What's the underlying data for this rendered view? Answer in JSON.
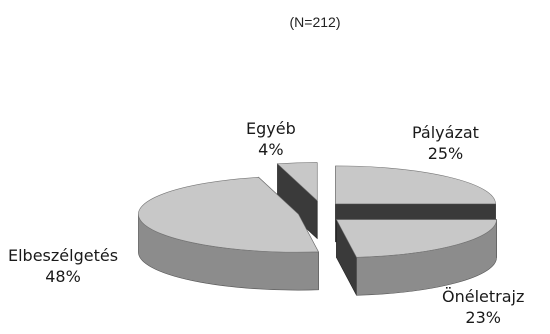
{
  "chart_data": {
    "type": "pie",
    "style": "exploded-3d",
    "subtitle": "(N=212)",
    "slices": [
      {
        "label": "Pályázat",
        "value": 25,
        "percent_label": "25%",
        "color": "#c8c8c8"
      },
      {
        "label": "Önéletrajz",
        "value": 23,
        "percent_label": "23%",
        "color": "#c8c8c8"
      },
      {
        "label": "Elbeszélgetés",
        "value": 48,
        "percent_label": "48%",
        "color": "#c8c8c8"
      },
      {
        "label": "Egyéb",
        "value": 4,
        "percent_label": "4%",
        "color": "#c8c8c8"
      }
    ],
    "side_color": "#8c8c8c",
    "cut_color": "#3a3a3a"
  }
}
